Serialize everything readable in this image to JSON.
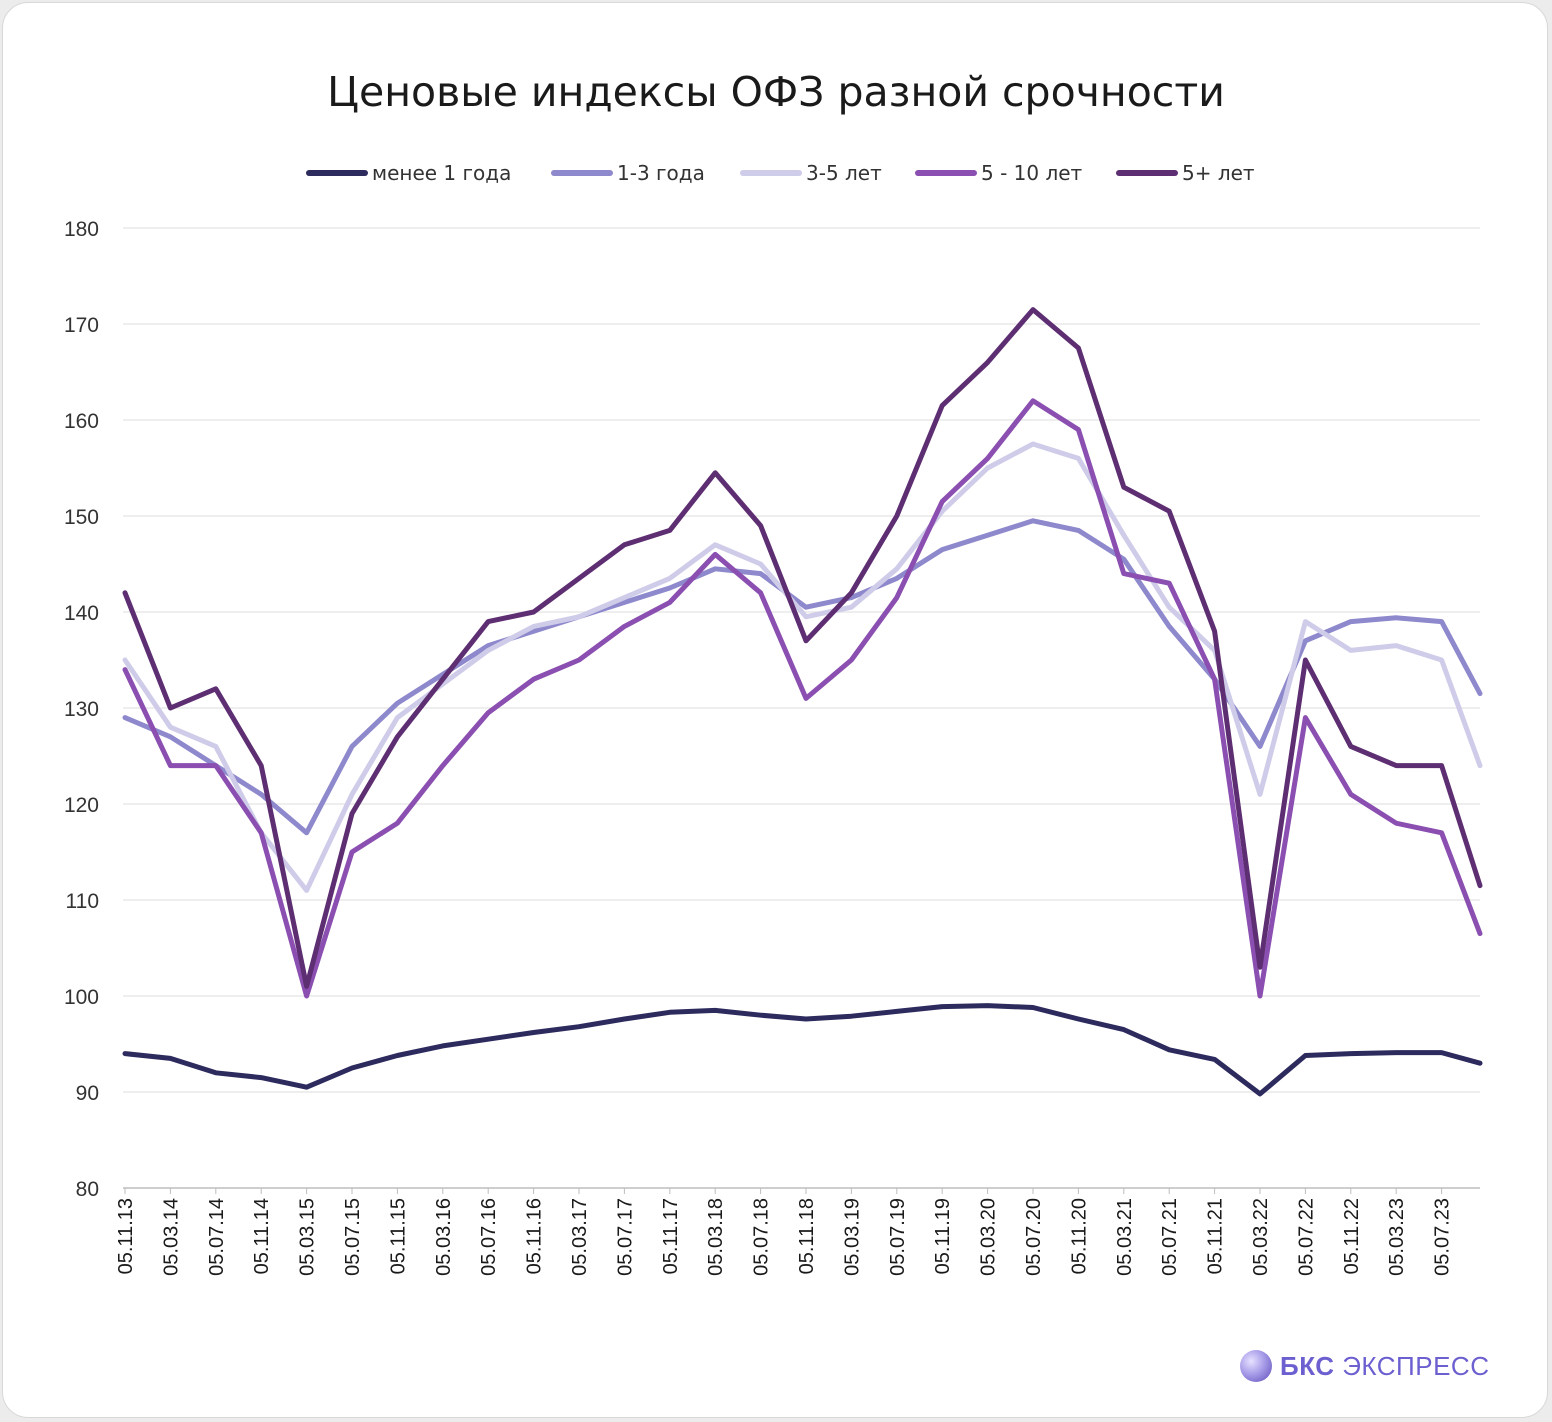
{
  "chart_data": {
    "type": "line",
    "title": "Ценовые индексы ОФЗ разной срочности",
    "xlabel": "",
    "ylabel": "",
    "ylim": [
      80,
      180
    ],
    "yticks": [
      80,
      90,
      100,
      110,
      120,
      130,
      140,
      150,
      160,
      170,
      180
    ],
    "grid": "horizontal",
    "legend_position": "top",
    "x": [
      "05.11.13",
      "05.03.14",
      "05.07.14",
      "05.11.14",
      "05.03.15",
      "05.07.15",
      "05.11.15",
      "05.03.16",
      "05.07.16",
      "05.11.16",
      "05.03.17",
      "05.07.17",
      "05.11.17",
      "05.03.18",
      "05.07.18",
      "05.11.18",
      "05.03.19",
      "05.07.19",
      "05.11.19",
      "05.03.20",
      "05.07.20",
      "05.11.20",
      "05.03.21",
      "05.07.21",
      "05.11.21",
      "05.03.22",
      "05.07.22",
      "05.11.22",
      "05.03.23",
      "05.07.23"
    ],
    "series": [
      {
        "name": "менее 1 года",
        "color": "#2d2a5e",
        "values": [
          94,
          93.5,
          92,
          91.5,
          90.5,
          92.5,
          93.8,
          94.8,
          95.5,
          96.2,
          96.8,
          97.6,
          98.3,
          98.5,
          98,
          97.6,
          97.9,
          98.4,
          98.9,
          99,
          98.8,
          97.6,
          96.5,
          94.4,
          93.4,
          89.8,
          93.8,
          94,
          94.1,
          94.1
        ],
        "final": 93
      },
      {
        "name": "1-3 года",
        "color": "#8e88cc",
        "values": [
          129,
          127,
          124,
          121,
          117,
          126,
          130.5,
          133.5,
          136.5,
          138,
          139.5,
          141,
          142.5,
          144.5,
          144,
          140.5,
          141.5,
          143.5,
          146.5,
          148,
          149.5,
          148.5,
          145.5,
          138.5,
          133,
          126,
          137,
          139,
          139.4,
          139
        ],
        "final": 131.5
      },
      {
        "name": "3-5 лет",
        "color": "#cfcce9",
        "values": [
          135,
          128,
          126,
          117,
          111,
          121,
          129,
          132.5,
          136,
          138.5,
          139.5,
          141.5,
          143.5,
          147,
          145,
          139.5,
          140.5,
          144.5,
          150.5,
          155,
          157.5,
          156,
          148,
          140.5,
          136,
          121,
          139,
          136,
          136.5,
          135
        ],
        "final": 124
      },
      {
        "name": "5 - 10 лет",
        "color": "#8a4fb0",
        "values": [
          134,
          124,
          124,
          117,
          100,
          115,
          118,
          124,
          129.5,
          133,
          135,
          138.5,
          141,
          146,
          142,
          131,
          135,
          141.5,
          151.5,
          156,
          162,
          159,
          144,
          143,
          133,
          100,
          129,
          121,
          118,
          117
        ],
        "final": 106.5
      },
      {
        "name": "5+ лет",
        "color": "#5e2e72",
        "values": [
          142,
          130,
          132,
          124,
          101,
          119,
          127,
          133,
          139,
          140,
          143.5,
          147,
          148.5,
          154.5,
          149,
          137,
          142,
          150,
          161.5,
          166,
          171.5,
          167.5,
          153,
          150.5,
          138,
          103,
          135,
          126,
          124,
          124
        ],
        "final": 111.5
      }
    ]
  },
  "brand": {
    "strong": "БКС",
    "rest": "ЭКСПРЕСС"
  }
}
